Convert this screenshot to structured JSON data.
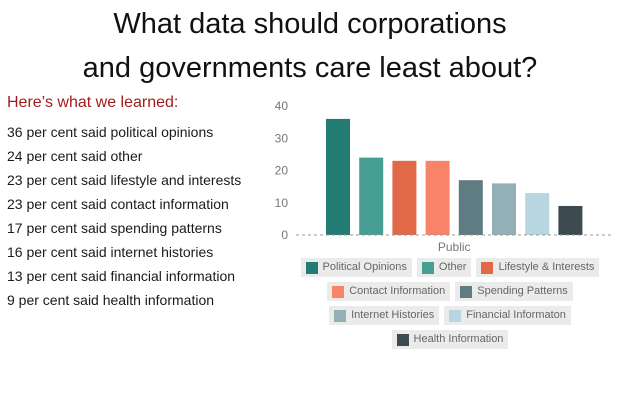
{
  "title": {
    "line1": "What data should corporations",
    "line2": "and governments care least about?"
  },
  "learned_heading": "Here’s what we learned:",
  "findings": [
    "36 per cent said political opinions",
    "24 per cent said other",
    "23 per cent said lifestyle and interests",
    "23 per cent said contact information",
    "17 per cent said spending patterns",
    "16 per cent said internet histories",
    "13 per cent said financial information",
    "9 per cent said health information"
  ],
  "chart_data": {
    "type": "bar",
    "categories": [
      "Public"
    ],
    "series": [
      {
        "name": "Political Opinions",
        "values": [
          36
        ],
        "color": "#237c71"
      },
      {
        "name": "Other",
        "values": [
          24
        ],
        "color": "#479f94"
      },
      {
        "name": "Lifestyle & Interests",
        "values": [
          23
        ],
        "color": "#e16849"
      },
      {
        "name": "Contact Information",
        "values": [
          23
        ],
        "color": "#f98368"
      },
      {
        "name": "Spending Patterns",
        "values": [
          17
        ],
        "color": "#5e7c82"
      },
      {
        "name": "Internet Histories",
        "values": [
          16
        ],
        "color": "#93b0b6"
      },
      {
        "name": "Financial Informaton",
        "values": [
          13
        ],
        "color": "#b8d6df"
      },
      {
        "name": "Health Information",
        "values": [
          9
        ],
        "color": "#3d4a51"
      }
    ],
    "y_ticks": [
      "0",
      "10",
      "20",
      "30",
      "40"
    ],
    "ylim": [
      0,
      40
    ],
    "grid": false,
    "legend_placement": "bottom",
    "xlabel": "",
    "ylabel": ""
  }
}
